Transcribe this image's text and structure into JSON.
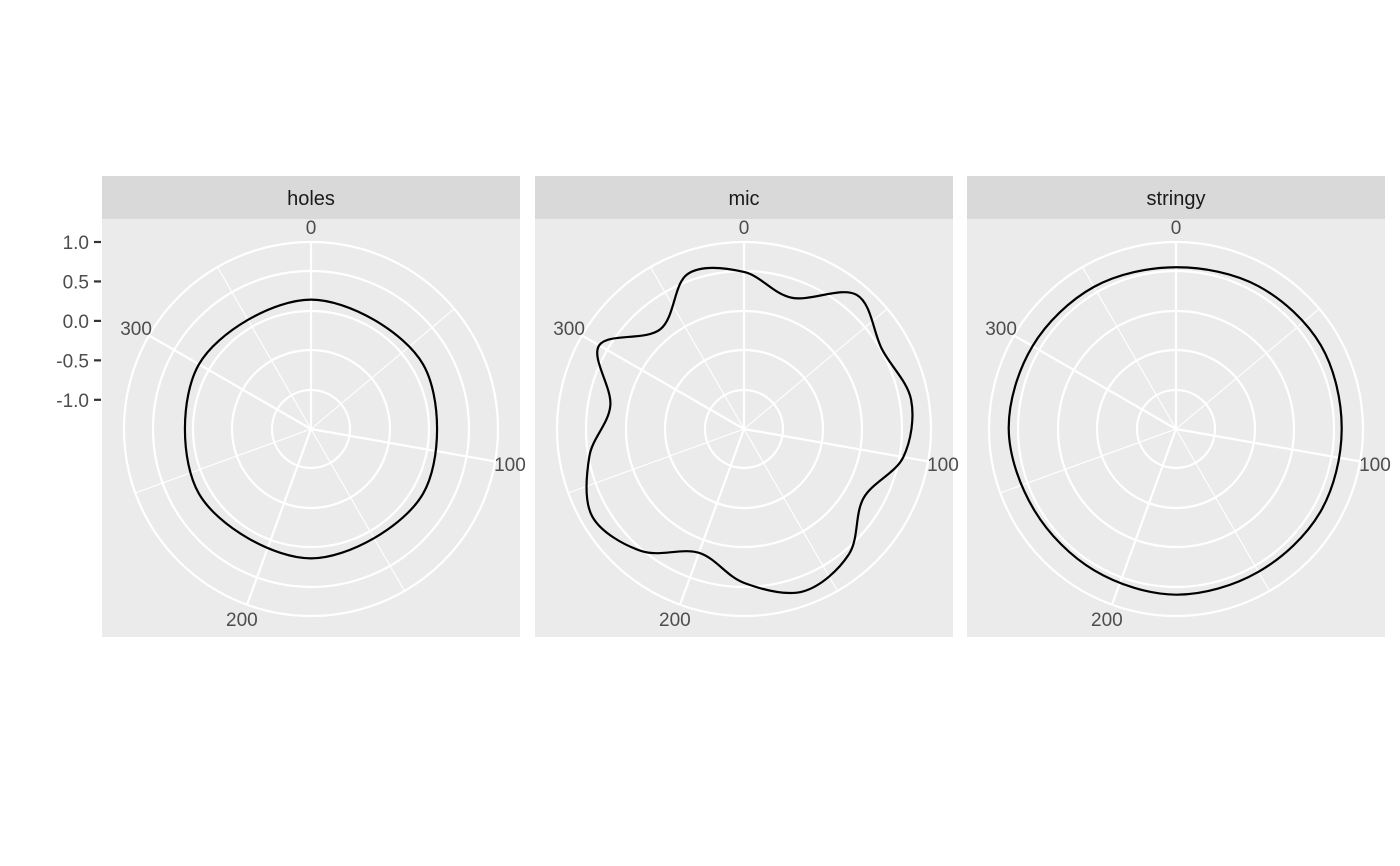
{
  "chart_data": {
    "type": "line",
    "coord": "polar",
    "facet_by": "panel",
    "panels": [
      "holes",
      "mic",
      "stringy"
    ],
    "theta_ticks": [
      0,
      100,
      200,
      300
    ],
    "theta_range": [
      0,
      360
    ],
    "r_ticks": [
      "1.0",
      "0.5",
      "0.0",
      "-0.5",
      "-1.0"
    ],
    "r_tick_values": [
      1.0,
      0.5,
      0.0,
      -0.5,
      -1.0
    ],
    "r_range": [
      -1.37,
      1.0
    ],
    "grid": true,
    "title": "",
    "xlabel": "",
    "ylabel": "",
    "series": [
      {
        "panel": "holes",
        "x": [
          0,
          60,
          120,
          180,
          240,
          300
        ],
        "y": [
          0.27,
          0.27,
          0.27,
          0.27,
          0.27,
          0.27
        ]
      },
      {
        "panel": "mic",
        "x": [
          0,
          20,
          40,
          60,
          80,
          100,
          120,
          140,
          160,
          180,
          200,
          220,
          240,
          260,
          280,
          300,
          320,
          340
        ],
        "y": [
          0.62,
          0.4,
          0.85,
          0.65,
          0.78,
          0.68,
          0.38,
          0.7,
          0.82,
          0.58,
          0.3,
          0.65,
          0.85,
          0.62,
          0.35,
          0.75,
          0.28,
          0.72
        ]
      },
      {
        "panel": "stringy",
        "x": [
          0,
          30,
          60,
          90,
          120,
          150,
          180,
          210,
          240,
          270,
          300,
          330
        ],
        "y": [
          0.68,
          0.72,
          0.75,
          0.73,
          0.74,
          0.72,
          0.73,
          0.7,
          0.7,
          0.75,
          0.73,
          0.71
        ]
      }
    ]
  }
}
